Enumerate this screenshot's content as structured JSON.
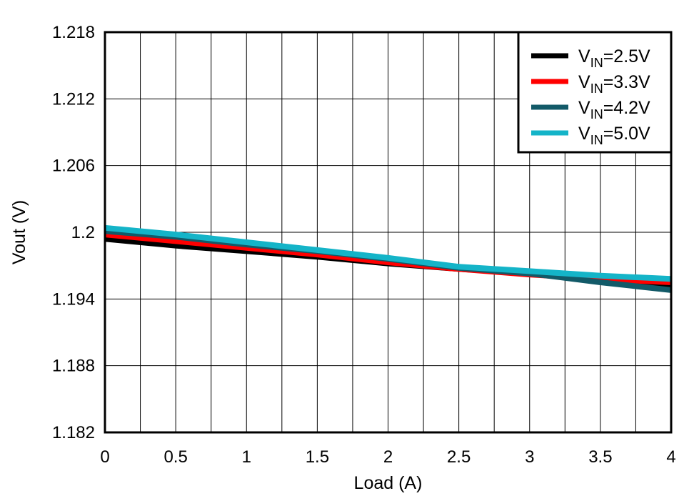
{
  "chart_data": {
    "type": "line",
    "title": "",
    "xlabel": "Load (A)",
    "ylabel": "Vout (V)",
    "xlim": [
      0,
      4
    ],
    "ylim": [
      1.182,
      1.218
    ],
    "x_major_ticks": [
      0,
      0.5,
      1,
      1.5,
      2,
      2.5,
      3,
      3.5,
      4
    ],
    "x_tick_labels": [
      "0",
      "0.5",
      "1",
      "1.5",
      "2",
      "2.5",
      "3",
      "3.5",
      "4"
    ],
    "x_minor_step": 0.25,
    "y_ticks": [
      1.182,
      1.188,
      1.194,
      1.2,
      1.206,
      1.212,
      1.218
    ],
    "y_tick_labels": [
      "1.182",
      "1.188",
      "1.194",
      "1.2",
      "1.206",
      "1.212",
      "1.218"
    ],
    "grid": true,
    "legend_position": "top-right",
    "series": [
      {
        "name": "VIN=2.5V",
        "legend_main": "V",
        "legend_sub": "IN",
        "legend_value": "=2.5V",
        "color": "#000000",
        "x": [
          0,
          0.5,
          1,
          1.5,
          2,
          2.5,
          3,
          3.5,
          4
        ],
        "y": [
          1.1994,
          1.1988,
          1.1983,
          1.1978,
          1.1972,
          1.1967,
          1.1963,
          1.1958,
          1.1953
        ]
      },
      {
        "name": "VIN=3.3V",
        "legend_main": "V",
        "legend_sub": "IN",
        "legend_value": "=3.3V",
        "color": "#ff0000",
        "x": [
          0,
          0.5,
          1,
          1.5,
          2,
          2.5,
          3,
          3.5,
          4
        ],
        "y": [
          1.1998,
          1.1992,
          1.1986,
          1.198,
          1.1973,
          1.1967,
          1.1962,
          1.1958,
          1.1955
        ]
      },
      {
        "name": "VIN=4.2V",
        "legend_main": "V",
        "legend_sub": "IN",
        "legend_value": "=4.2V",
        "color": "#125a68",
        "x": [
          0,
          0.5,
          1,
          1.5,
          2,
          2.5,
          3,
          3.5,
          4
        ],
        "y": [
          1.2001,
          1.1996,
          1.1989,
          1.1983,
          1.1976,
          1.1968,
          1.1963,
          1.1955,
          1.1948
        ]
      },
      {
        "name": "VIN=5.0V",
        "legend_main": "V",
        "legend_sub": "IN",
        "legend_value": "=5.0V",
        "color": "#14b4c8",
        "x": [
          0,
          0.5,
          1,
          1.5,
          2,
          2.5,
          3,
          3.5,
          4
        ],
        "y": [
          1.2004,
          1.1998,
          1.1991,
          1.1984,
          1.1977,
          1.1969,
          1.1965,
          1.1961,
          1.1958
        ]
      }
    ]
  }
}
